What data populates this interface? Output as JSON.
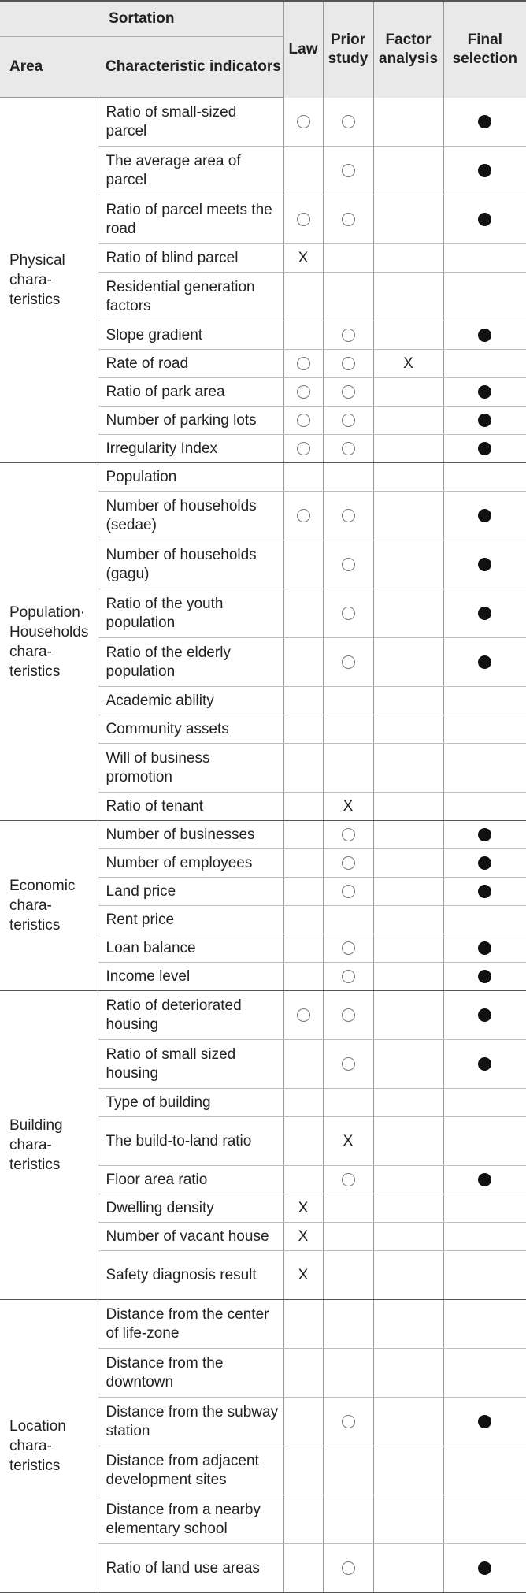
{
  "header": {
    "sortation": "Sortation",
    "area": "Area",
    "indicators": "Characteristic indicators",
    "law": "Law",
    "prior_study": "Prior study",
    "factor_analysis": "Factor analysis",
    "final_selection": "Final selection"
  },
  "legend": {
    "open": "open-circle-icon",
    "filled": "filled-circle-icon",
    "x": "X"
  },
  "groups": [
    {
      "area": "Physical\nchara-\nteristics",
      "rows": [
        {
          "indicator": "Ratio of small-sized parcel",
          "law": "O",
          "prior": "O",
          "factor": "",
          "final": "F"
        },
        {
          "indicator": "The average area of parcel",
          "law": "",
          "prior": "O",
          "factor": "",
          "final": "F"
        },
        {
          "indicator": "Ratio of parcel meets the road",
          "law": "O",
          "prior": "O",
          "factor": "",
          "final": "F"
        },
        {
          "indicator": "Ratio of blind parcel",
          "law": "X",
          "prior": "",
          "factor": "",
          "final": ""
        },
        {
          "indicator": "Residential generation factors",
          "law": "",
          "prior": "",
          "factor": "",
          "final": ""
        },
        {
          "indicator": "Slope gradient",
          "law": "",
          "prior": "O",
          "factor": "",
          "final": "F"
        },
        {
          "indicator": "Rate of road",
          "law": "O",
          "prior": "O",
          "factor": "X",
          "final": ""
        },
        {
          "indicator": "Ratio of park area",
          "law": "O",
          "prior": "O",
          "factor": "",
          "final": "F"
        },
        {
          "indicator": "Number of parking lots",
          "law": "O",
          "prior": "O",
          "factor": "",
          "final": "F"
        },
        {
          "indicator": "Irregularity Index",
          "law": "O",
          "prior": "O",
          "factor": "",
          "final": "F"
        }
      ]
    },
    {
      "area": "Population·\nHouseholds\nchara-\nteristics",
      "rows": [
        {
          "indicator": "Population",
          "law": "",
          "prior": "",
          "factor": "",
          "final": ""
        },
        {
          "indicator": "Number of households (sedae)",
          "law": "O",
          "prior": "O",
          "factor": "",
          "final": "F"
        },
        {
          "indicator": "Number of households (gagu)",
          "law": "",
          "prior": "O",
          "factor": "",
          "final": "F"
        },
        {
          "indicator": "Ratio of the youth population",
          "law": "",
          "prior": "O",
          "factor": "",
          "final": "F"
        },
        {
          "indicator": "Ratio of the elderly population",
          "law": "",
          "prior": "O",
          "factor": "",
          "final": "F"
        },
        {
          "indicator": "Academic ability",
          "law": "",
          "prior": "",
          "factor": "",
          "final": ""
        },
        {
          "indicator": "Community assets",
          "law": "",
          "prior": "",
          "factor": "",
          "final": ""
        },
        {
          "indicator": "Will of business promotion",
          "law": "",
          "prior": "",
          "factor": "",
          "final": ""
        },
        {
          "indicator": "Ratio of tenant",
          "law": "",
          "prior": "X",
          "factor": "",
          "final": ""
        }
      ]
    },
    {
      "area": "Economic\nchara-\nteristics",
      "rows": [
        {
          "indicator": "Number of businesses",
          "law": "",
          "prior": "O",
          "factor": "",
          "final": "F"
        },
        {
          "indicator": "Number of employees",
          "law": "",
          "prior": "O",
          "factor": "",
          "final": "F"
        },
        {
          "indicator": "Land price",
          "law": "",
          "prior": "O",
          "factor": "",
          "final": "F"
        },
        {
          "indicator": "Rent price",
          "law": "",
          "prior": "",
          "factor": "",
          "final": ""
        },
        {
          "indicator": "Loan balance",
          "law": "",
          "prior": "O",
          "factor": "",
          "final": "F"
        },
        {
          "indicator": "Income level",
          "law": "",
          "prior": "O",
          "factor": "",
          "final": "F"
        }
      ]
    },
    {
      "area": "Building\nchara-\nteristics",
      "rows": [
        {
          "indicator": "Ratio of deteriorated housing",
          "law": "O",
          "prior": "O",
          "factor": "",
          "final": "F"
        },
        {
          "indicator": "Ratio of small sized housing",
          "law": "",
          "prior": "O",
          "factor": "",
          "final": "F"
        },
        {
          "indicator": "Type of building",
          "law": "",
          "prior": "",
          "factor": "",
          "final": ""
        },
        {
          "indicator": "The build-to-land ratio",
          "law": "",
          "prior": "X",
          "factor": "",
          "final": ""
        },
        {
          "indicator": "Floor area ratio",
          "law": "",
          "prior": "O",
          "factor": "",
          "final": "F"
        },
        {
          "indicator": "Dwelling density",
          "law": "X",
          "prior": "",
          "factor": "",
          "final": ""
        },
        {
          "indicator": "Number of vacant house",
          "law": "X",
          "prior": "",
          "factor": "",
          "final": ""
        },
        {
          "indicator": "Safety diagnosis result",
          "law": "X",
          "prior": "",
          "factor": "",
          "final": ""
        }
      ]
    },
    {
      "area": "Location\nchara-\nteristics",
      "rows": [
        {
          "indicator": "Distance from the center of life-zone",
          "law": "",
          "prior": "",
          "factor": "",
          "final": ""
        },
        {
          "indicator": "Distance from the downtown",
          "law": "",
          "prior": "",
          "factor": "",
          "final": ""
        },
        {
          "indicator": "Distance from the subway station",
          "law": "",
          "prior": "O",
          "factor": "",
          "final": "F"
        },
        {
          "indicator": "Distance from adjacent development sites",
          "law": "",
          "prior": "",
          "factor": "",
          "final": ""
        },
        {
          "indicator": "Distance from a nearby elementary school",
          "law": "",
          "prior": "",
          "factor": "",
          "final": ""
        },
        {
          "indicator": "Ratio of land use areas",
          "law": "",
          "prior": "O",
          "factor": "",
          "final": "F"
        }
      ]
    }
  ]
}
